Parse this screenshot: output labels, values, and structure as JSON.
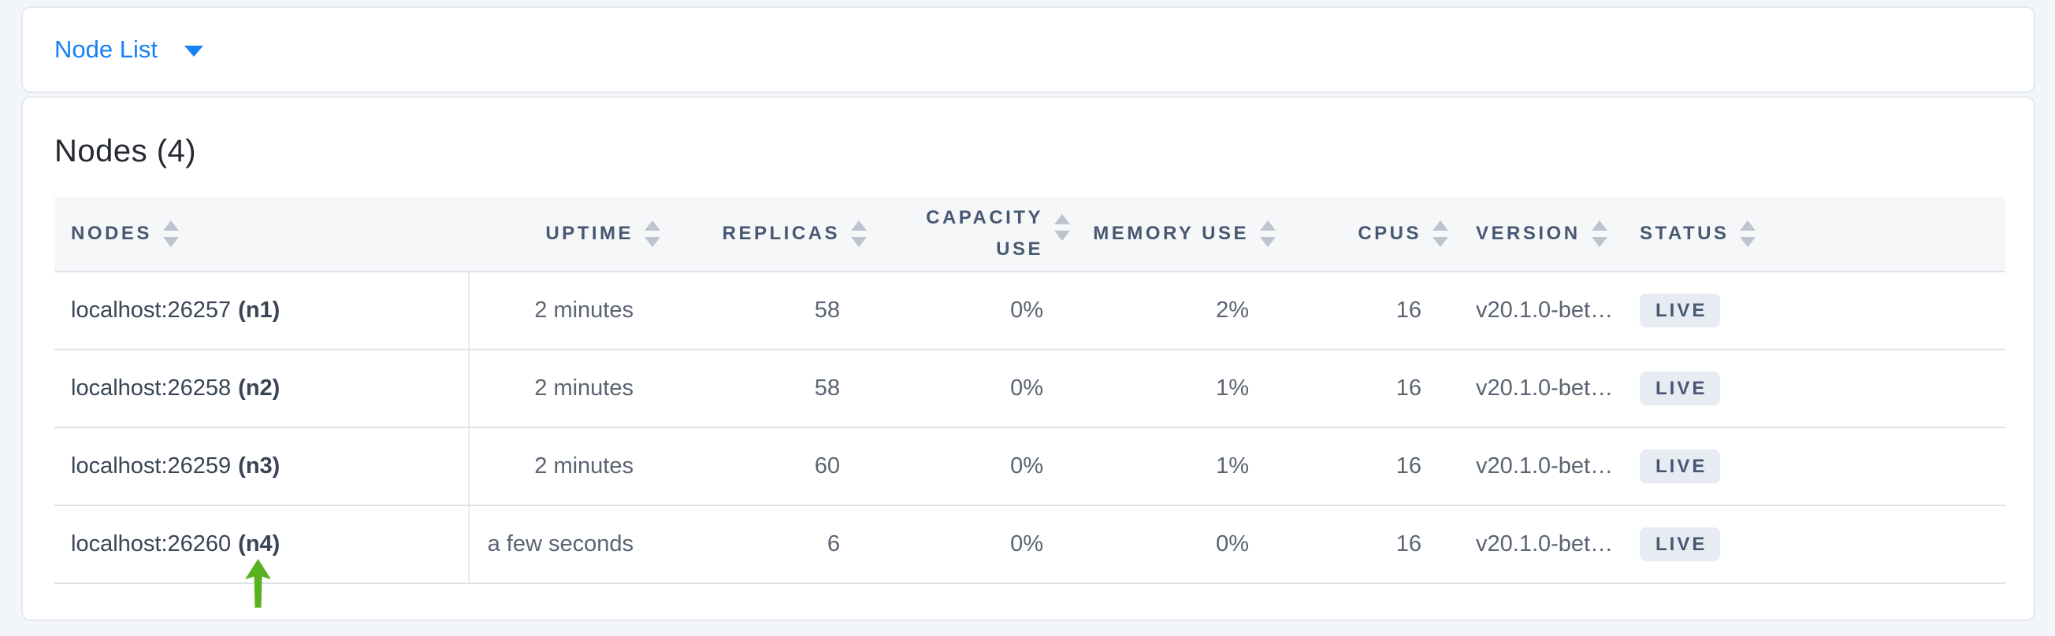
{
  "view_selector": {
    "label": "Node List"
  },
  "page_title": "Nodes (4)",
  "table": {
    "columns": [
      {
        "key": "nodes",
        "label": "NODES",
        "align": "left"
      },
      {
        "key": "uptime",
        "label": "UPTIME",
        "align": "right"
      },
      {
        "key": "replicas",
        "label": "REPLICAS",
        "align": "right"
      },
      {
        "key": "capacity_use",
        "label": "CAPACITY USE",
        "align": "right"
      },
      {
        "key": "memory_use",
        "label": "MEMORY USE",
        "align": "right"
      },
      {
        "key": "cpus",
        "label": "CPUS",
        "align": "right"
      },
      {
        "key": "version",
        "label": "VERSION",
        "align": "left"
      },
      {
        "key": "status",
        "label": "STATUS",
        "align": "left"
      }
    ],
    "rows": [
      {
        "node_address": "localhost:26257",
        "node_id": "(n1)",
        "uptime": "2 minutes",
        "replicas": "58",
        "capacity_use": "0%",
        "memory_use": "2%",
        "cpus": "16",
        "version": "v20.1.0-bet…",
        "status": "LIVE"
      },
      {
        "node_address": "localhost:26258",
        "node_id": "(n2)",
        "uptime": "2 minutes",
        "replicas": "58",
        "capacity_use": "0%",
        "memory_use": "1%",
        "cpus": "16",
        "version": "v20.1.0-bet…",
        "status": "LIVE"
      },
      {
        "node_address": "localhost:26259",
        "node_id": "(n3)",
        "uptime": "2 minutes",
        "replicas": "60",
        "capacity_use": "0%",
        "memory_use": "1%",
        "cpus": "16",
        "version": "v20.1.0-bet…",
        "status": "LIVE"
      },
      {
        "node_address": "localhost:26260",
        "node_id": "(n4)",
        "uptime": "a few seconds",
        "replicas": "6",
        "capacity_use": "0%",
        "memory_use": "0%",
        "cpus": "16",
        "version": "v20.1.0-bet…",
        "status": "LIVE"
      }
    ]
  },
  "annotation": {
    "points_at": "localhost:26260 (n4)"
  },
  "colors": {
    "page_bg": "#f2f5f9",
    "link_blue": "#1681f3",
    "header_text": "#475872",
    "cell_primary": "#394455",
    "cell_secondary": "#5b6472",
    "badge_bg": "#e7ebf2",
    "row_border": "#dee3eb",
    "sort_icon": "#bdc4cf",
    "arrow_green": "#58b11f"
  }
}
